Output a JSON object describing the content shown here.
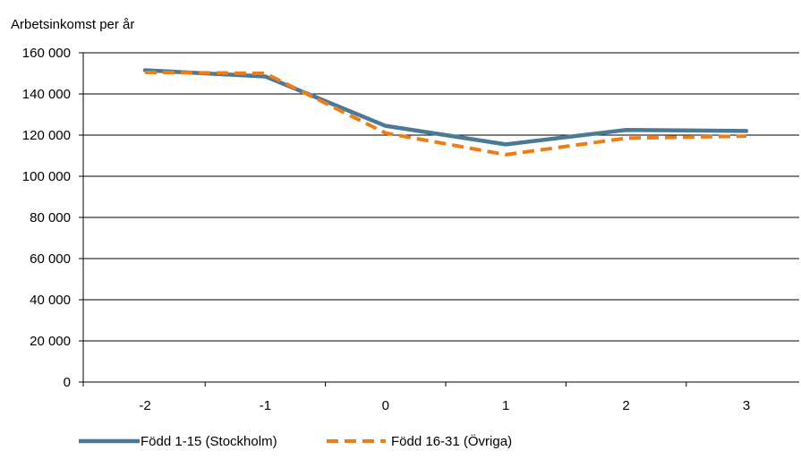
{
  "chart_data": {
    "type": "line",
    "title": "",
    "xlabel": "",
    "ylabel": "Arbetsinkomst per år",
    "categories": [
      "-2",
      "-1",
      "0",
      "1",
      "2",
      "3"
    ],
    "ylim": [
      0,
      160000
    ],
    "y_ticks": [
      0,
      20000,
      40000,
      60000,
      80000,
      100000,
      120000,
      140000,
      160000
    ],
    "y_tick_labels": [
      "0",
      "20 000",
      "40 000",
      "60 000",
      "80 000",
      "100 000",
      "120 000",
      "140 000",
      "160 000"
    ],
    "grid": true,
    "legend_position": "bottom-left",
    "series": [
      {
        "name": "Född 1-15 (Stockholm)",
        "values": [
          151500,
          148500,
          124500,
          115500,
          122500,
          122000
        ],
        "color": "#4a7a96",
        "style": "solid"
      },
      {
        "name": "Född 16-31 (Övriga)",
        "values": [
          150500,
          150000,
          121000,
          110500,
          118500,
          119500
        ],
        "color": "#ee7d14",
        "style": "dashed"
      }
    ]
  }
}
